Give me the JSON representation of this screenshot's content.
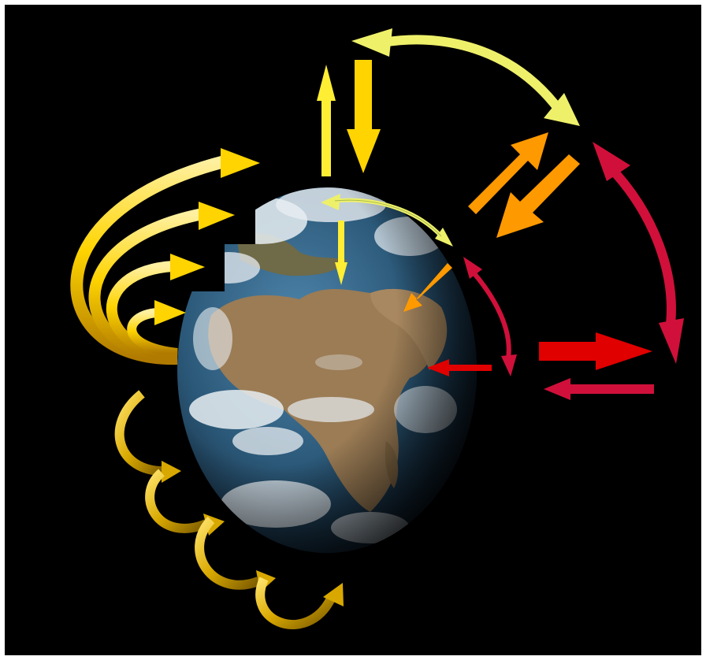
{
  "colors": {
    "background": "#000000",
    "frame": "#ffffff",
    "yellow": "#ffd400",
    "pale_yellow": "#eef06a",
    "gold": "#d8a800",
    "orange": "#ff9900",
    "red": "#e00000",
    "crimson": "#d0103a",
    "ocean": "#2f5f86",
    "land": "#9b7c55",
    "cloud": "#e8eef2"
  },
  "icons": {
    "globe": "earth-globe-icon"
  }
}
